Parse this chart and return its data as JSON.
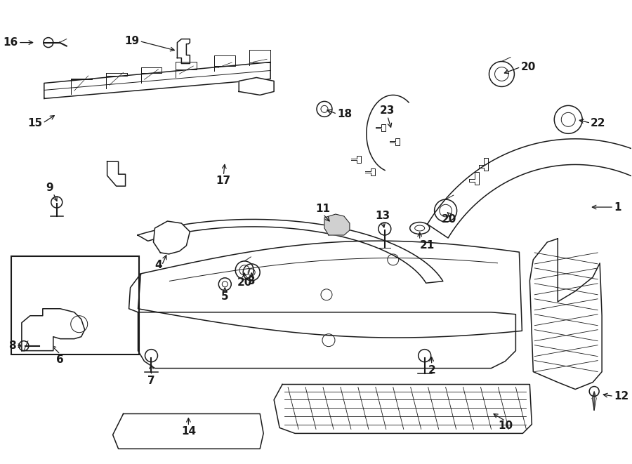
{
  "bg_color": "#ffffff",
  "line_color": "#1a1a1a",
  "fig_width": 9.0,
  "fig_height": 6.61,
  "lw": 1.1,
  "lw_thin": 0.7,
  "lw_thick": 1.5
}
